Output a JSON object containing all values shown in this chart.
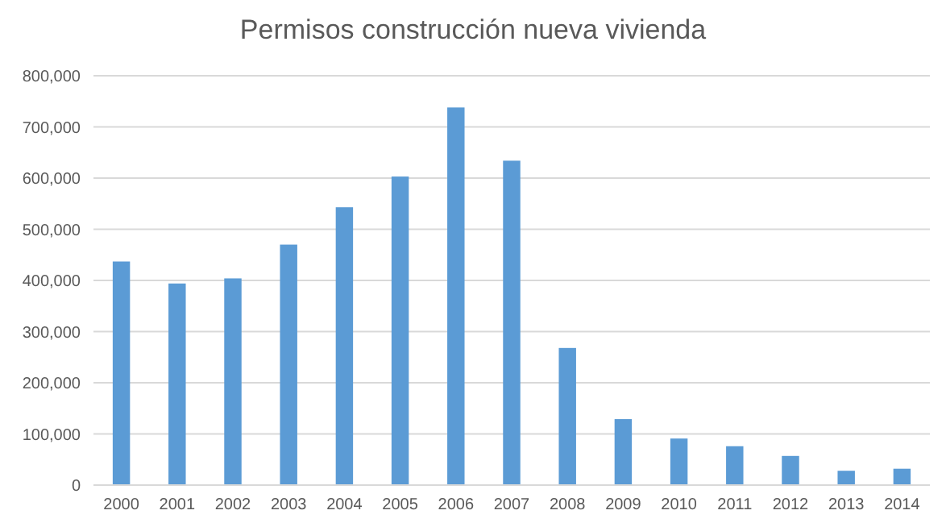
{
  "chart_data": {
    "type": "bar",
    "title": "Permisos construcción nueva vivienda",
    "categories": [
      "2000",
      "2001",
      "2002",
      "2003",
      "2004",
      "2005",
      "2006",
      "2007",
      "2008",
      "2009",
      "2010",
      "2011",
      "2012",
      "2013",
      "2014"
    ],
    "values": [
      437000,
      394000,
      404000,
      470000,
      543000,
      603000,
      738000,
      634000,
      268000,
      129000,
      91000,
      76000,
      57000,
      28000,
      32000
    ],
    "color": "#5b9bd5",
    "ylim": [
      0,
      800000
    ],
    "yticks": [
      {
        "value": 0,
        "label": "0"
      },
      {
        "value": 100000,
        "label": "100,000"
      },
      {
        "value": 200000,
        "label": "200,000"
      },
      {
        "value": 300000,
        "label": "300,000"
      },
      {
        "value": 400000,
        "label": "400,000"
      },
      {
        "value": 500000,
        "label": "500,000"
      },
      {
        "value": 600000,
        "label": "600,000"
      },
      {
        "value": 700000,
        "label": "700,000"
      },
      {
        "value": 800000,
        "label": "800,000"
      }
    ],
    "grid": "y"
  }
}
